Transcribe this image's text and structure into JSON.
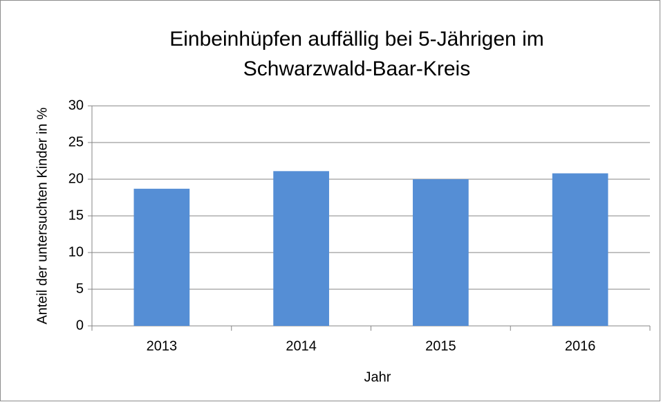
{
  "chart_data": {
    "type": "bar",
    "title": [
      "Einbeinhüpfen auffällig bei 5-Jährigen im",
      "Schwarzwald-Baar-Kreis"
    ],
    "x_label": "Jahr",
    "y_label": "Anteil der untersuchten Kinder in %",
    "categories": [
      "2013",
      "2014",
      "2015",
      "2016"
    ],
    "values": [
      18.7,
      21.1,
      20.0,
      20.8
    ],
    "color": "#558ed5",
    "ylim": [
      0,
      30
    ],
    "yticks": [
      0,
      5,
      10,
      15,
      20,
      25,
      30
    ],
    "grid": true
  }
}
